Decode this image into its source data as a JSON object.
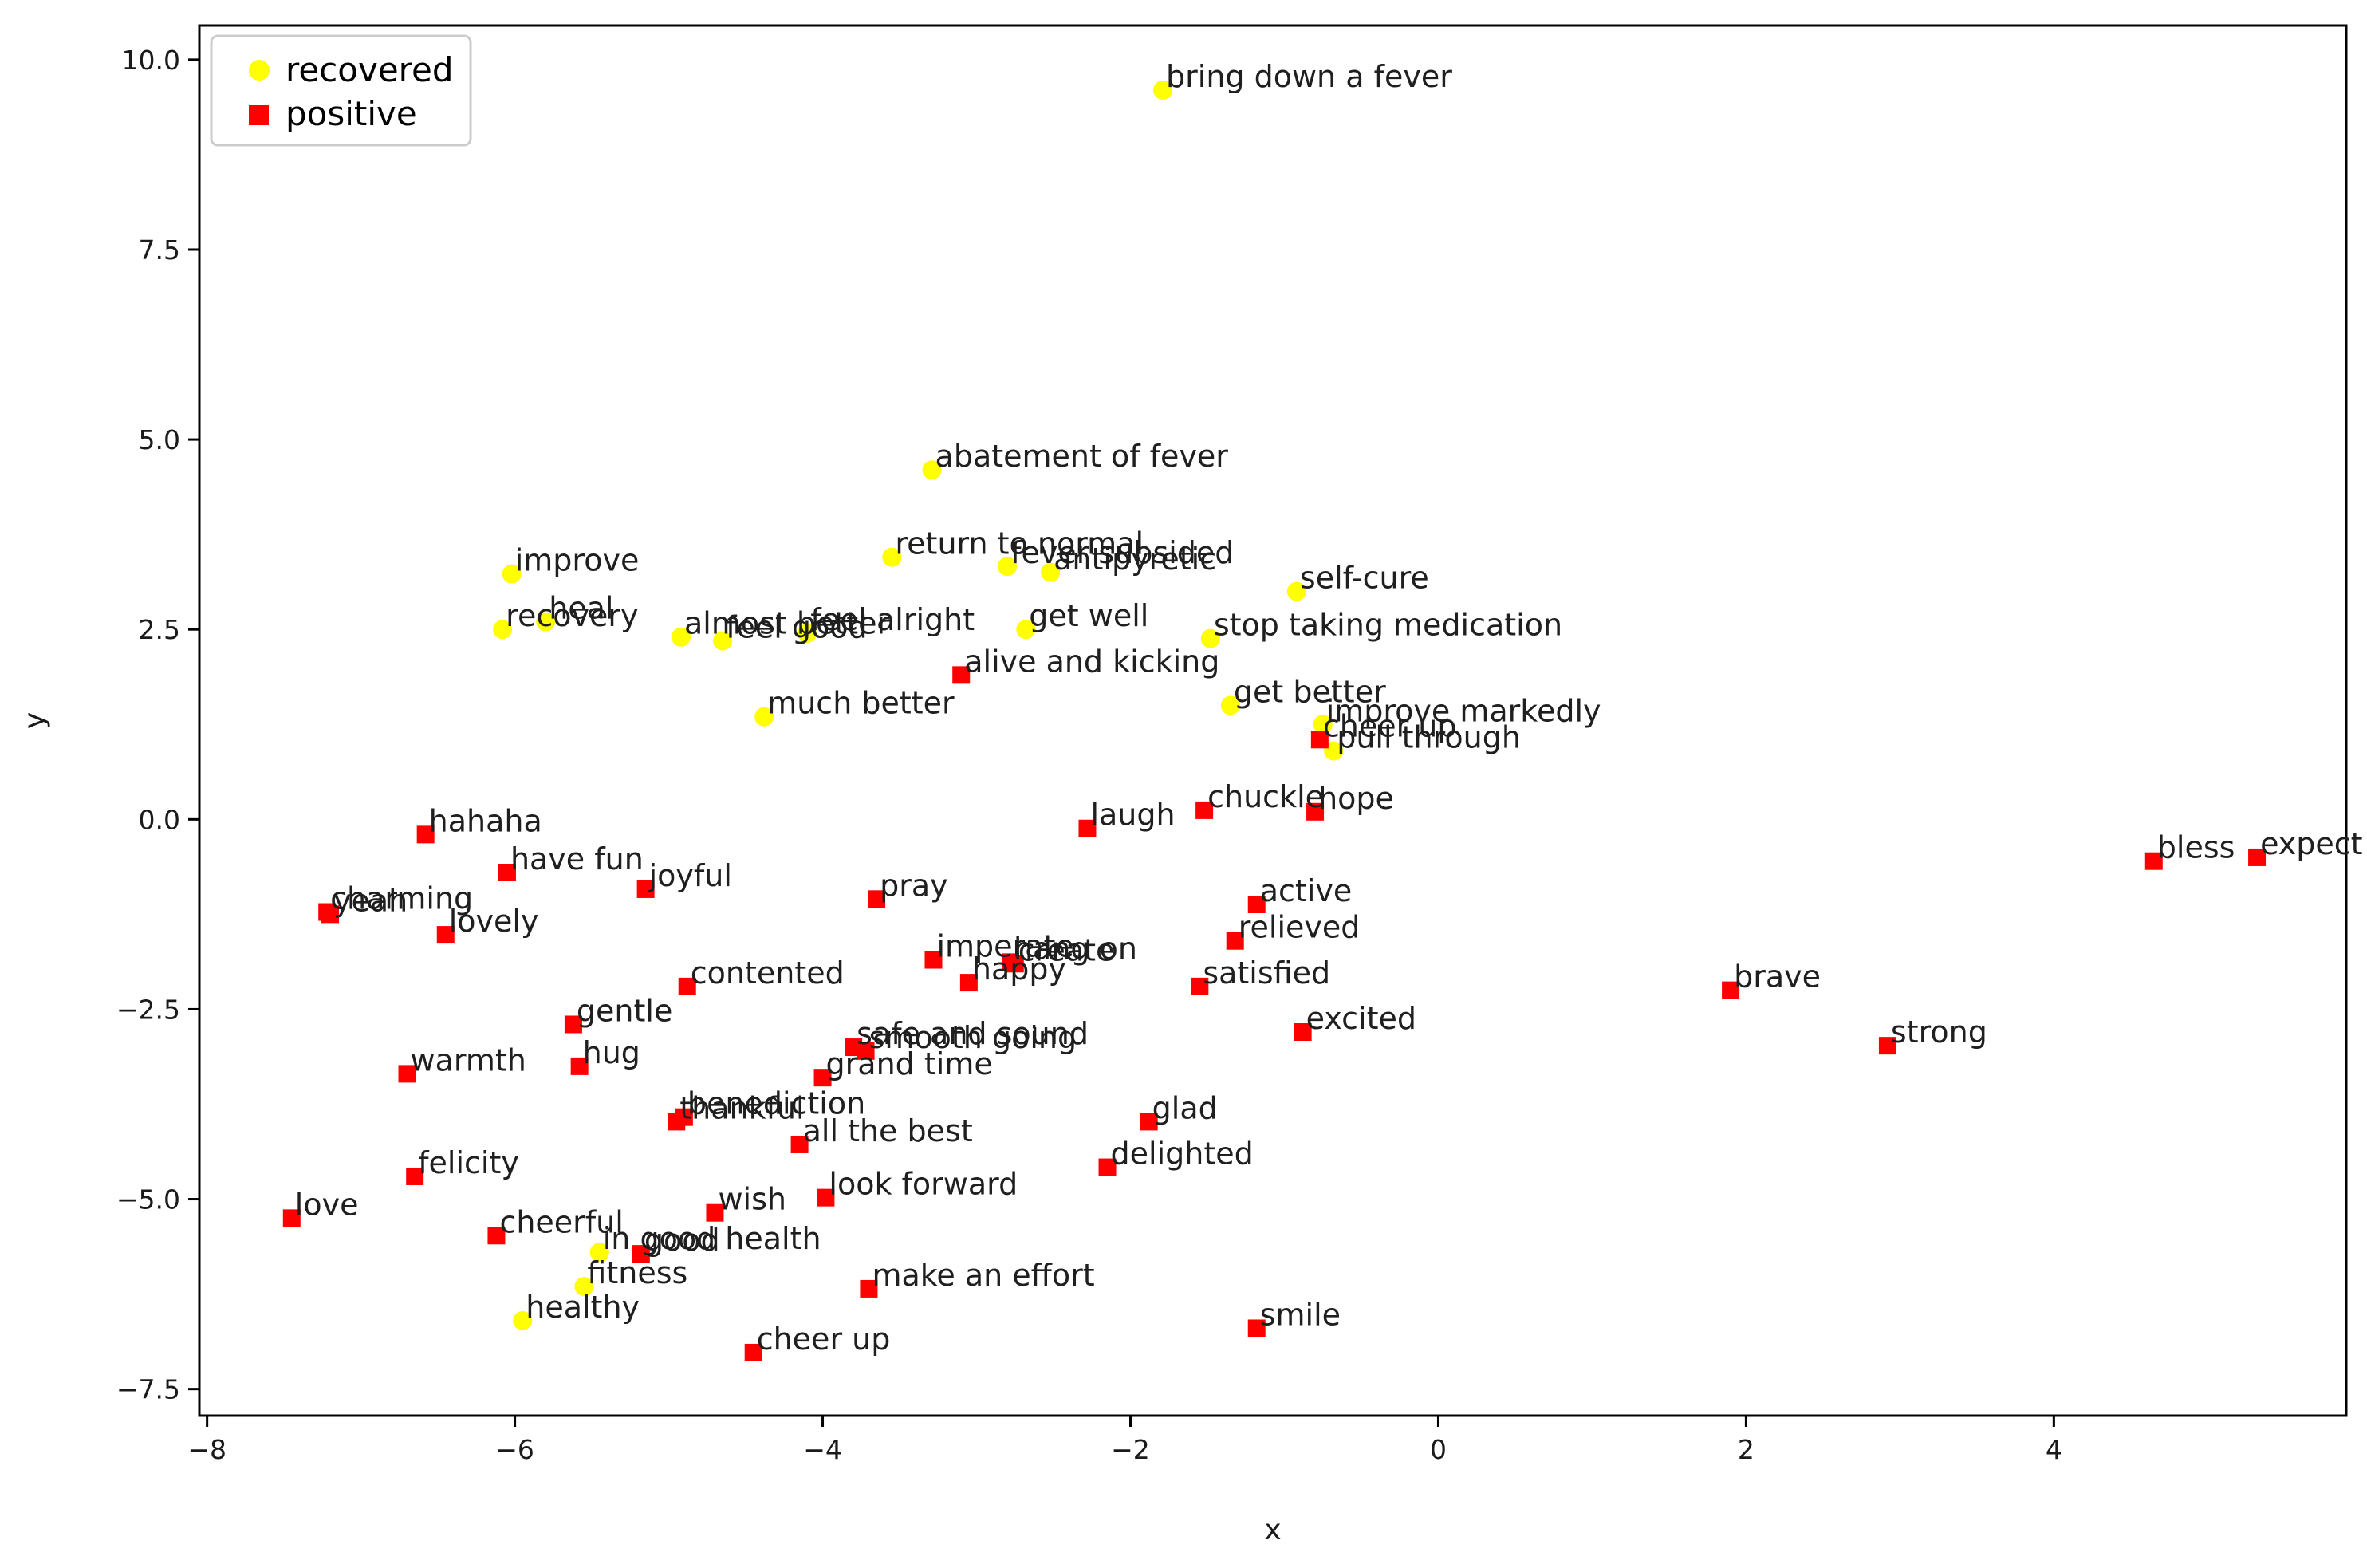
{
  "chart_data": {
    "type": "scatter",
    "title": "",
    "xlabel": "x",
    "ylabel": "y",
    "xlim": [
      -8.05,
      5.9
    ],
    "ylim": [
      -7.85,
      10.45
    ],
    "xticks": [
      -8,
      -6,
      -4,
      -2,
      0,
      2,
      4
    ],
    "xtick_labels": [
      "−8",
      "−6",
      "−4",
      "−2",
      "0",
      "2",
      "4"
    ],
    "yticks": [
      -7.5,
      -5.0,
      -2.5,
      0.0,
      2.5,
      5.0,
      7.5,
      10.0
    ],
    "ytick_labels": [
      "−7.5",
      "−5.0",
      "−2.5",
      "0.0",
      "2.5",
      "5.0",
      "7.5",
      "10.0"
    ],
    "grid": false,
    "legend_position": "top-left",
    "series": [
      {
        "name": "recovered",
        "color": "#ffff00",
        "marker": "circle",
        "points": [
          {
            "x": -1.79,
            "y": 9.6,
            "label": "bring down a fever"
          },
          {
            "x": -3.29,
            "y": 4.6,
            "label": "abatement of fever"
          },
          {
            "x": -6.02,
            "y": 3.23,
            "label": "improve"
          },
          {
            "x": -3.55,
            "y": 3.45,
            "label": "return to normal"
          },
          {
            "x": -2.8,
            "y": 3.33,
            "label": "fever subsided"
          },
          {
            "x": -2.52,
            "y": 3.25,
            "label": "antipyretic"
          },
          {
            "x": -0.92,
            "y": 3.0,
            "label": "self-cure"
          },
          {
            "x": -6.08,
            "y": 2.5,
            "label": "recovery"
          },
          {
            "x": -5.8,
            "y": 2.6,
            "label": "heal"
          },
          {
            "x": -4.92,
            "y": 2.4,
            "label": "almost better"
          },
          {
            "x": -4.1,
            "y": 2.45,
            "label": "feel alright"
          },
          {
            "x": -4.65,
            "y": 2.35,
            "label": "feel good"
          },
          {
            "x": -2.68,
            "y": 2.5,
            "label": "get well"
          },
          {
            "x": -1.48,
            "y": 2.38,
            "label": "stop taking medication"
          },
          {
            "x": -4.38,
            "y": 1.35,
            "label": "much better"
          },
          {
            "x": -1.35,
            "y": 1.5,
            "label": "get better"
          },
          {
            "x": -0.75,
            "y": 1.25,
            "label": "improve markedly"
          },
          {
            "x": -0.68,
            "y": 0.9,
            "label": "pull through"
          },
          {
            "x": -5.45,
            "y": -5.7,
            "label": "in good health"
          },
          {
            "x": -5.55,
            "y": -6.15,
            "label": "fitness"
          },
          {
            "x": -5.95,
            "y": -6.6,
            "label": "healthy"
          }
        ]
      },
      {
        "name": "positive",
        "color": "#ff0000",
        "marker": "square",
        "points": [
          {
            "x": -3.1,
            "y": 1.9,
            "label": "alive and kicking"
          },
          {
            "x": -0.77,
            "y": 1.05,
            "label": "cheer up"
          },
          {
            "x": -1.52,
            "y": 0.12,
            "label": "chuckle"
          },
          {
            "x": -0.8,
            "y": 0.1,
            "label": "hope"
          },
          {
            "x": -2.28,
            "y": -0.12,
            "label": "laugh"
          },
          {
            "x": -6.58,
            "y": -0.2,
            "label": "hahaha"
          },
          {
            "x": -6.05,
            "y": -0.7,
            "label": "have fun"
          },
          {
            "x": -5.15,
            "y": -0.92,
            "label": "joyful"
          },
          {
            "x": -7.2,
            "y": -1.25,
            "label": "yeah"
          },
          {
            "x": -7.22,
            "y": -1.22,
            "label": "charming"
          },
          {
            "x": -6.45,
            "y": -1.52,
            "label": "lovely"
          },
          {
            "x": -3.65,
            "y": -1.05,
            "label": "pray"
          },
          {
            "x": -1.18,
            "y": -1.12,
            "label": "active"
          },
          {
            "x": -1.32,
            "y": -1.6,
            "label": "relieved"
          },
          {
            "x": -3.28,
            "y": -1.85,
            "label": "imperate"
          },
          {
            "x": -2.78,
            "y": -1.88,
            "label": "hang on"
          },
          {
            "x": -2.75,
            "y": -1.9,
            "label": "create"
          },
          {
            "x": -3.05,
            "y": -2.15,
            "label": "happy"
          },
          {
            "x": -1.55,
            "y": -2.2,
            "label": "satisfied"
          },
          {
            "x": -4.88,
            "y": -2.2,
            "label": "contented"
          },
          {
            "x": -5.62,
            "y": -2.7,
            "label": "gentle"
          },
          {
            "x": -0.88,
            "y": -2.8,
            "label": "excited"
          },
          {
            "x": 1.9,
            "y": -2.25,
            "label": "brave"
          },
          {
            "x": 2.92,
            "y": -2.98,
            "label": "strong"
          },
          {
            "x": 4.65,
            "y": -0.55,
            "label": "bless"
          },
          {
            "x": 5.32,
            "y": -0.5,
            "label": "expect"
          },
          {
            "x": -3.8,
            "y": -3.0,
            "label": "safe and sound"
          },
          {
            "x": -3.72,
            "y": -3.05,
            "label": "smooth going"
          },
          {
            "x": -5.58,
            "y": -3.25,
            "label": "hug"
          },
          {
            "x": -6.7,
            "y": -3.35,
            "label": "warmth"
          },
          {
            "x": -4.0,
            "y": -3.4,
            "label": "grand time"
          },
          {
            "x": -4.95,
            "y": -3.98,
            "label": "thankful"
          },
          {
            "x": -4.9,
            "y": -3.92,
            "label": "benediction"
          },
          {
            "x": -1.88,
            "y": -3.98,
            "label": "glad"
          },
          {
            "x": -4.15,
            "y": -4.28,
            "label": "all the best"
          },
          {
            "x": -6.65,
            "y": -4.7,
            "label": "felicity"
          },
          {
            "x": -2.15,
            "y": -4.58,
            "label": "delighted"
          },
          {
            "x": -3.98,
            "y": -4.98,
            "label": "look forward"
          },
          {
            "x": -4.7,
            "y": -5.18,
            "label": "wish"
          },
          {
            "x": -7.45,
            "y": -5.25,
            "label": "love"
          },
          {
            "x": -6.12,
            "y": -5.48,
            "label": "cheerful"
          },
          {
            "x": -5.18,
            "y": -5.72,
            "label": "good"
          },
          {
            "x": -3.7,
            "y": -6.18,
            "label": "make an effort"
          },
          {
            "x": -1.18,
            "y": -6.7,
            "label": "smile"
          },
          {
            "x": -4.45,
            "y": -7.02,
            "label": "cheer up"
          }
        ]
      }
    ]
  }
}
